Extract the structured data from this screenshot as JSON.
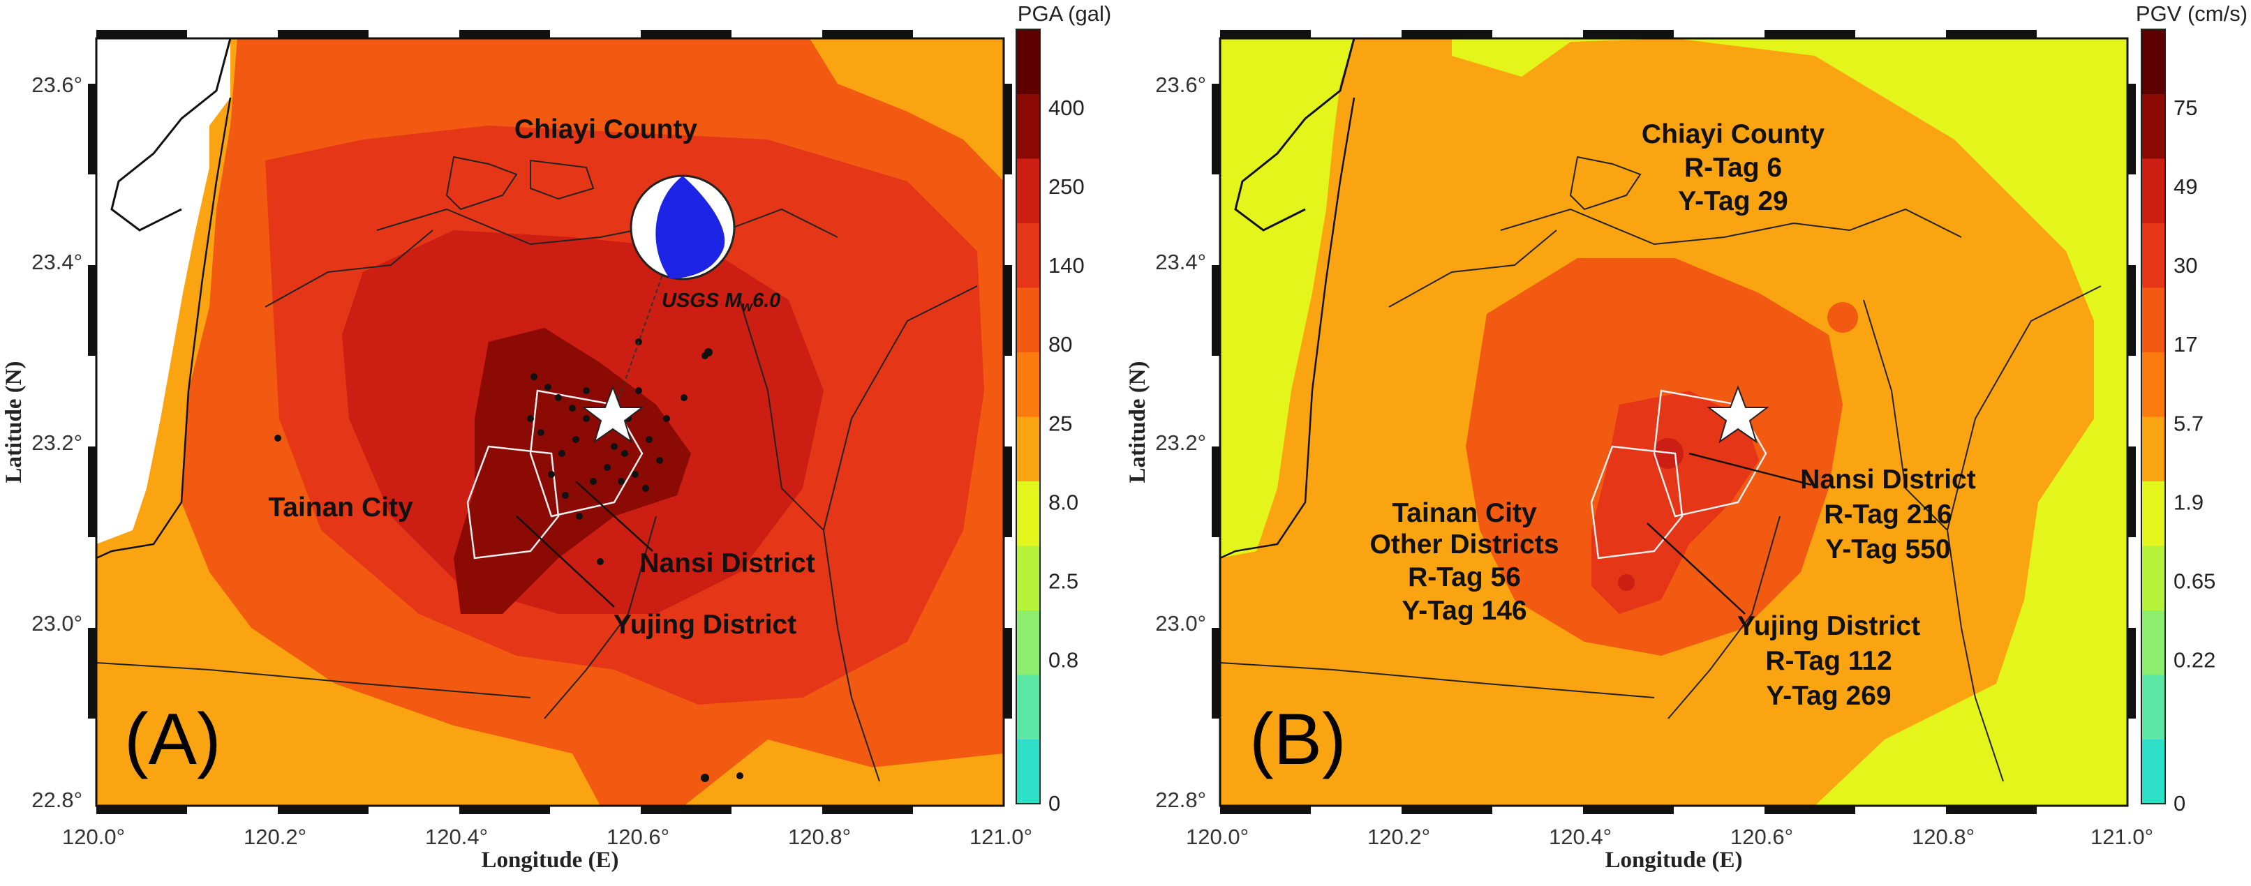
{
  "panels": [
    {
      "id": "A",
      "letter": "(A)",
      "xlabel": "Longitude (E)",
      "ylabel": "Latitude (N)",
      "colorbar": {
        "title": "PGA (gal)",
        "labels": [
          "400",
          "250",
          "140",
          "80",
          "25",
          "8.0",
          "2.5",
          "0.8",
          "0"
        ],
        "colors": [
          "#e8401c",
          "#2fe0c8",
          "#5ce8a4",
          "#8ced6e",
          "#b7f23a",
          "#e4f51c",
          "#fba411",
          "#fd7a0e",
          "#f25a12",
          "#e53717",
          "#cc1e12",
          "#8b0a04",
          "#5e0000"
        ]
      },
      "labels": {
        "chiayi": "Chiayi County",
        "tainan": "Tainan City",
        "nansi": "Nansi District",
        "yujing": "Yujing District",
        "usgs_prefix": "USGS M",
        "usgs_sub": "w",
        "usgs_suffix": "6.0"
      }
    },
    {
      "id": "B",
      "letter": "(B)",
      "xlabel": "Longitude (E)",
      "ylabel": "Latitude (N)",
      "colorbar": {
        "title": "PGV (cm/s)",
        "labels": [
          "75",
          "49",
          "30",
          "17",
          "5.7",
          "1.9",
          "0.65",
          "0.22",
          "0"
        ],
        "colors": [
          "#e8401c",
          "#2fe0c8",
          "#5ce8a4",
          "#8ced6e",
          "#b7f23a",
          "#e4f51c",
          "#fba411",
          "#fd7a0e",
          "#f25a12",
          "#e53717",
          "#cc1e12",
          "#8b0a04",
          "#5e0000"
        ]
      },
      "labels": {
        "chiayi": "Chiayi County",
        "chiayi_r": "R-Tag  6",
        "chiayi_y": "Y-Tag  29",
        "tainan1": "Tainan City",
        "tainan2": "Other Districts",
        "tainan_r": "R-Tag  56",
        "tainan_y": "Y-Tag  146",
        "nansi": "Nansi District",
        "nansi_r": "R-Tag  216",
        "nansi_y": "Y-Tag  550",
        "yujing": "Yujing District",
        "yujing_r": "R-Tag  112",
        "yujing_y": "Y-Tag  269"
      }
    }
  ],
  "axes": {
    "x_ticks": [
      "120.0°",
      "120.2°",
      "120.4°",
      "120.6°",
      "120.8°",
      "121.0°"
    ],
    "y_ticks": [
      "23.6°",
      "23.4°",
      "23.2°",
      "23.0°",
      "22.8°"
    ],
    "x_range": [
      120.0,
      121.0
    ],
    "y_range": [
      22.8,
      23.65
    ]
  },
  "epicenter": {
    "lon": 120.57,
    "lat": 23.23
  }
}
